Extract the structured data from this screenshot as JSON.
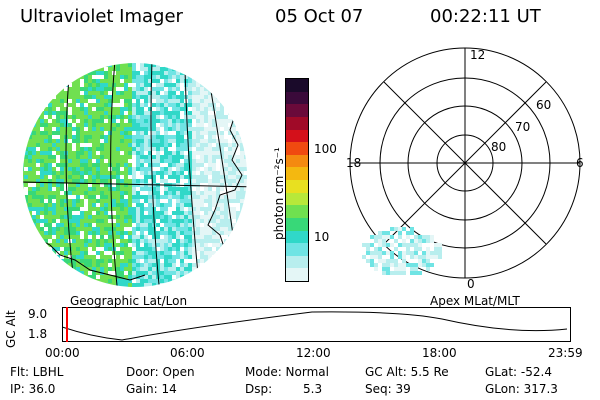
{
  "header": {
    "title": "Ultraviolet Imager",
    "date": "05 Oct 07",
    "time": "00:22:11 UT"
  },
  "colorbar": {
    "unit_label": "photon cm⁻²s⁻¹",
    "ticks": [
      "100",
      "10"
    ],
    "colors": [
      "#1a0a2a",
      "#3a0a3a",
      "#6a0a3a",
      "#a00a28",
      "#d4101a",
      "#f04a10",
      "#f48a10",
      "#f4b810",
      "#e8e020",
      "#b8e83a",
      "#70e050",
      "#38d878",
      "#30d8c8",
      "#70e4e4",
      "#b8eeee",
      "#e4f6f6"
    ]
  },
  "left_map": {
    "caption": "Geographic Lat/Lon"
  },
  "right_map": {
    "caption": "Apex MLat/MLT",
    "mlt_labels": [
      "12",
      "18",
      "6",
      "0"
    ],
    "lat_labels": [
      "60",
      "70",
      "80"
    ]
  },
  "altitude_plot": {
    "ylabel": "GC Alt",
    "yticks": [
      "9.0",
      "1.8"
    ],
    "xticks": [
      "00:00",
      "06:00",
      "12:00",
      "18:00",
      "23:59"
    ],
    "cursor_color": "#ff0000"
  },
  "footer": {
    "col1": [
      "Flt: LBHL",
      "IP: 36.0"
    ],
    "col2": [
      "Door: Open",
      "Gain: 14"
    ],
    "col3a": [
      "Mode: Normal",
      "Dsp:"
    ],
    "col3b": [
      "",
      "5.3"
    ],
    "col4": [
      "GC Alt: 5.5 Re",
      "Seq: 39"
    ],
    "col5": [
      "GLat: -52.4",
      "GLon: 317.3"
    ]
  }
}
